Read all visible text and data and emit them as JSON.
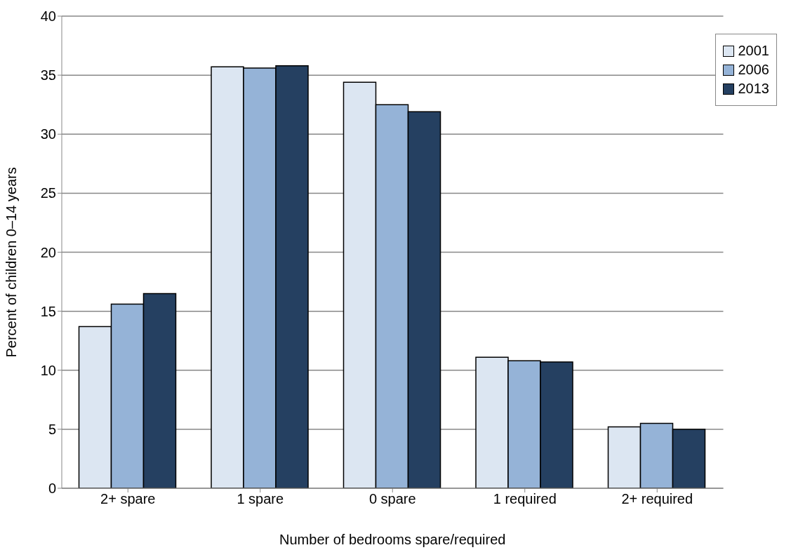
{
  "chart_data": {
    "type": "bar",
    "xlabel": "Number of bedrooms spare/required",
    "ylabel": "Percent of children 0–14 years",
    "categories": [
      "2+ spare",
      "1 spare",
      "0 spare",
      "1 required",
      "2+ required"
    ],
    "series": [
      {
        "name": "2001",
        "color": "#dce6f2",
        "values": [
          13.7,
          35.7,
          34.4,
          11.1,
          5.2
        ]
      },
      {
        "name": "2006",
        "color": "#95b3d7",
        "values": [
          15.6,
          35.6,
          32.5,
          10.8,
          5.5
        ]
      },
      {
        "name": "2013",
        "color": "#254061",
        "values": [
          16.5,
          35.8,
          31.9,
          10.7,
          5.0
        ]
      }
    ],
    "ylim": [
      0,
      40
    ],
    "yticks": [
      0,
      5,
      10,
      15,
      20,
      25,
      30,
      35,
      40
    ],
    "grid": "y",
    "legend": "top right"
  }
}
